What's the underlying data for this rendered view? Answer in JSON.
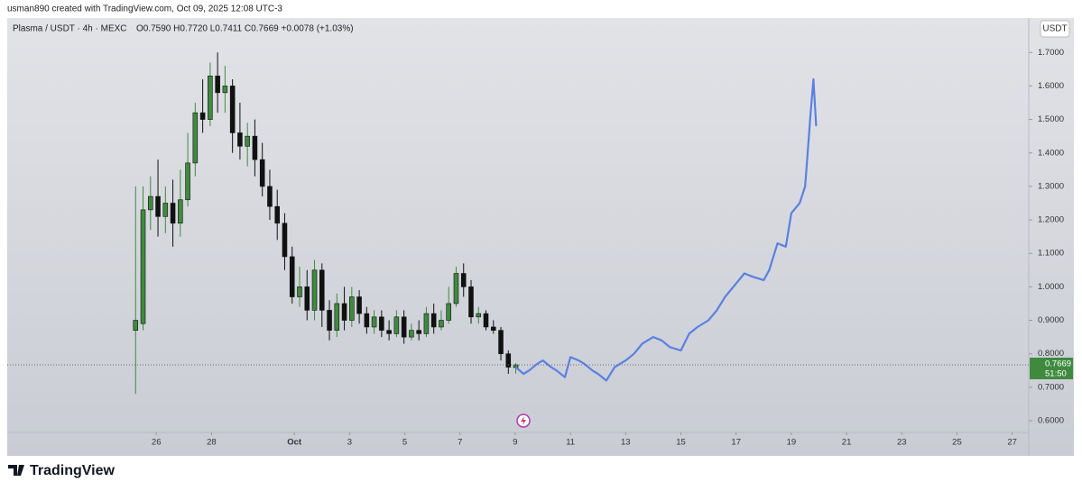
{
  "header": "usman890 created with TradingView.com, Oct 09, 2025 12:08 UTC-3",
  "footer": "TradingView",
  "chart_data": {
    "type": "candlestick",
    "title": "Plasma / USDT · 4h · MEXC",
    "ohlc_text": "O0.7590 H0.7720 L0.7411 C0.7669 +0.0078 (+1.03%)",
    "currency": "USDT",
    "up_color": "#3f8a3f",
    "down_color": "#111111",
    "x": [
      25.25,
      25.52,
      25.79,
      26.06,
      26.33,
      26.6,
      26.87,
      27.14,
      27.41,
      27.68,
      27.95,
      28.22,
      28.49,
      28.76,
      29.03,
      29.3,
      29.57,
      29.84,
      30.11,
      30.38,
      30.65,
      30.92,
      31.19,
      31.46,
      31.73,
      32,
      32.27,
      32.54,
      32.81,
      33.08,
      33.35,
      33.62,
      33.89,
      34.16,
      34.43,
      34.7,
      34.97,
      35.24,
      35.51,
      35.78,
      36.05,
      36.32,
      36.59,
      36.86,
      37.13,
      37.4,
      37.67,
      37.94,
      38.21,
      38.48,
      38.75,
      39.02
    ],
    "open": [
      0.87,
      0.89,
      1.23,
      1.27,
      1.21,
      1.25,
      1.19,
      1.26,
      1.37,
      1.52,
      1.5,
      1.63,
      1.58,
      1.6,
      1.46,
      1.42,
      1.45,
      1.38,
      1.3,
      1.24,
      1.19,
      1.09,
      0.97,
      1.0,
      0.93,
      1.05,
      0.93,
      0.87,
      0.95,
      0.9,
      0.97,
      0.92,
      0.88,
      0.91,
      0.87,
      0.86,
      0.91,
      0.85,
      0.87,
      0.86,
      0.92,
      0.88,
      0.9,
      0.95,
      1.04,
      1.0,
      0.91,
      0.92,
      0.88,
      0.87,
      0.8,
      0.759
    ],
    "high": [
      1.3,
      1.3,
      1.33,
      1.38,
      1.3,
      1.32,
      1.35,
      1.46,
      1.55,
      1.62,
      1.67,
      1.7,
      1.66,
      1.62,
      1.55,
      1.49,
      1.5,
      1.43,
      1.35,
      1.29,
      1.22,
      1.12,
      1.06,
      1.05,
      1.08,
      1.07,
      0.96,
      0.98,
      1.0,
      1.0,
      0.99,
      0.94,
      0.93,
      0.93,
      0.9,
      0.93,
      0.93,
      0.89,
      0.9,
      0.94,
      0.95,
      0.93,
      1.0,
      1.06,
      1.07,
      1.02,
      0.94,
      0.93,
      0.9,
      0.88,
      0.81,
      0.772
    ],
    "low": [
      0.68,
      0.87,
      1.17,
      1.15,
      1.16,
      1.12,
      1.15,
      1.24,
      1.33,
      1.46,
      1.48,
      1.52,
      1.52,
      1.4,
      1.38,
      1.36,
      1.33,
      1.27,
      1.2,
      1.14,
      1.05,
      0.95,
      0.94,
      0.9,
      0.9,
      0.88,
      0.84,
      0.85,
      0.87,
      0.88,
      0.89,
      0.86,
      0.86,
      0.85,
      0.84,
      0.85,
      0.83,
      0.84,
      0.84,
      0.85,
      0.86,
      0.87,
      0.89,
      0.94,
      0.97,
      0.89,
      0.89,
      0.87,
      0.86,
      0.78,
      0.74,
      0.7411
    ],
    "close": [
      0.9,
      1.23,
      1.27,
      1.21,
      1.25,
      1.19,
      1.26,
      1.37,
      1.52,
      1.5,
      1.63,
      1.58,
      1.6,
      1.46,
      1.42,
      1.45,
      1.38,
      1.3,
      1.24,
      1.19,
      1.09,
      0.97,
      1.0,
      0.93,
      1.05,
      0.93,
      0.87,
      0.95,
      0.9,
      0.97,
      0.92,
      0.88,
      0.91,
      0.87,
      0.86,
      0.91,
      0.85,
      0.87,
      0.86,
      0.92,
      0.88,
      0.9,
      0.95,
      1.04,
      1.0,
      0.91,
      0.92,
      0.88,
      0.87,
      0.8,
      0.76,
      0.7669
    ],
    "projection": {
      "color": "#5b80e2",
      "x": [
        39.02,
        39.3,
        39.5,
        39.8,
        40.0,
        40.3,
        40.5,
        40.8,
        41.0,
        41.3,
        41.5,
        41.8,
        42.0,
        42.3,
        42.6,
        43.0,
        43.3,
        43.6,
        44.0,
        44.3,
        44.6,
        45.0,
        45.3,
        45.6,
        46.0,
        46.3,
        46.6,
        47.0,
        47.3,
        47.6,
        48.0,
        48.2,
        48.5,
        48.8,
        49.0,
        49.3,
        49.5,
        49.7,
        49.8,
        49.9
      ],
      "values": [
        0.76,
        0.74,
        0.75,
        0.77,
        0.78,
        0.76,
        0.75,
        0.73,
        0.79,
        0.78,
        0.77,
        0.75,
        0.74,
        0.72,
        0.76,
        0.78,
        0.8,
        0.83,
        0.85,
        0.84,
        0.82,
        0.81,
        0.86,
        0.88,
        0.9,
        0.93,
        0.97,
        1.01,
        1.04,
        1.03,
        1.02,
        1.05,
        1.13,
        1.12,
        1.22,
        1.25,
        1.3,
        1.52,
        1.62,
        1.48
      ]
    },
    "last_price": {
      "value": 0.7669,
      "label": "0.7669"
    },
    "countdown": "51:50",
    "xlim": [
      20.6,
      57.6
    ],
    "ylim": [
      0.565,
      1.803
    ],
    "xticks": [
      26,
      28,
      {
        "value": 31,
        "label": "Oct"
      },
      {
        "value": 33,
        "label": "3"
      },
      {
        "value": 35,
        "label": "5"
      },
      {
        "value": 37,
        "label": "7"
      },
      {
        "value": 39,
        "label": "9"
      },
      {
        "value": 41,
        "label": "11"
      },
      {
        "value": 43,
        "label": "13"
      },
      {
        "value": 45,
        "label": "15"
      },
      {
        "value": 47,
        "label": "17"
      },
      {
        "value": 49,
        "label": "19"
      },
      {
        "value": 51,
        "label": "21"
      },
      {
        "value": 53,
        "label": "23"
      },
      {
        "value": 55,
        "label": "25"
      },
      {
        "value": 57,
        "label": "27"
      }
    ],
    "yticks": [
      {
        "value": 0.6,
        "label": "0.6000"
      },
      {
        "value": 0.7,
        "label": "0.7000"
      },
      {
        "value": 0.8,
        "label": "0.8000"
      },
      {
        "value": 0.9,
        "label": "0.9000"
      },
      {
        "value": 1.0,
        "label": "1.0000"
      },
      {
        "value": 1.1,
        "label": "1.1000"
      },
      {
        "value": 1.2,
        "label": "1.2000"
      },
      {
        "value": 1.3,
        "label": "1.3000"
      },
      {
        "value": 1.4,
        "label": "1.4000"
      },
      {
        "value": 1.5,
        "label": "1.5000"
      },
      {
        "value": 1.6,
        "label": "1.6000"
      },
      {
        "value": 1.7,
        "label": "1.7000"
      }
    ]
  }
}
